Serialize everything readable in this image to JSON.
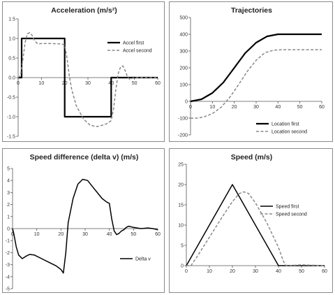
{
  "chart_data": [
    {
      "id": "accel",
      "type": "line",
      "title": "Acceleration (m/s²)",
      "xlim": [
        0,
        60
      ],
      "ylim": [
        -1.5,
        1.5
      ],
      "xticks": [
        0,
        10,
        20,
        30,
        40,
        50,
        60
      ],
      "yticks": [
        -1.5,
        -1.0,
        -0.5,
        0.0,
        0.5,
        1.0,
        1.5
      ],
      "ytick_labels": [
        "-1.5",
        "-1.0",
        "-0.5",
        "0.0",
        "0.5",
        "1.0",
        "1.5"
      ],
      "xaxis_at_zero": true,
      "legend": "right",
      "series": [
        {
          "name": "Accel first",
          "color": "#000000",
          "dash": "",
          "width": 2.2,
          "x": [
            0,
            1.5,
            1.5,
            20,
            20,
            40,
            40,
            43,
            60
          ],
          "y": [
            0,
            0,
            1,
            1,
            -1,
            -1,
            0,
            0,
            0
          ]
        },
        {
          "name": "Accel second",
          "color": "#888888",
          "dash": "4,2.5",
          "width": 1.5,
          "x": [
            0,
            1,
            2,
            3,
            4,
            5,
            6,
            7,
            8,
            9,
            10,
            14,
            18,
            20,
            21,
            22,
            23,
            25,
            28,
            31,
            34,
            36,
            38,
            40,
            41,
            42,
            43,
            44,
            45,
            46,
            47,
            48,
            49,
            50,
            52,
            55,
            60
          ],
          "y": [
            0,
            0.05,
            0.45,
            0.9,
            1.12,
            1.15,
            1.08,
            0.95,
            0.88,
            0.86,
            0.87,
            0.87,
            0.86,
            0.84,
            0.5,
            0.05,
            -0.3,
            -0.72,
            -1.05,
            -1.22,
            -1.25,
            -1.22,
            -1.18,
            -1.1,
            -0.8,
            -0.3,
            0.1,
            0.27,
            0.3,
            0.18,
            0.02,
            -0.05,
            -0.02,
            0,
            0,
            0,
            0
          ]
        }
      ]
    },
    {
      "id": "traj",
      "type": "line",
      "title": "Trajectories",
      "xlim": [
        0,
        60
      ],
      "ylim": [
        -200,
        500
      ],
      "xticks": [
        0,
        10,
        20,
        30,
        40,
        50,
        60
      ],
      "yticks": [
        -200,
        -100,
        0,
        100,
        200,
        300,
        400,
        500
      ],
      "ytick_labels": [
        "-200",
        "-100",
        "0",
        "100",
        "200",
        "300",
        "400",
        "500"
      ],
      "xaxis_at_zero": true,
      "legend": "bottom-right",
      "series": [
        {
          "name": "Location first",
          "color": "#000000",
          "dash": "",
          "width": 2.2,
          "x": [
            0,
            5,
            10,
            15,
            20,
            25,
            30,
            35,
            40,
            45,
            50,
            55,
            60
          ],
          "y": [
            0,
            12.5,
            50,
            112.5,
            200,
            287.5,
            350,
            387.5,
            400,
            400,
            400,
            400,
            400
          ]
        },
        {
          "name": "Location second",
          "color": "#888888",
          "dash": "4,2.5",
          "width": 1.5,
          "x": [
            0,
            3,
            6,
            10,
            14,
            18,
            22,
            26,
            30,
            34,
            38,
            42,
            44,
            50,
            55,
            60
          ],
          "y": [
            -100,
            -100,
            -93,
            -73,
            -35,
            25,
            100,
            180,
            245,
            290,
            305,
            308,
            308,
            308,
            308,
            308
          ]
        }
      ]
    },
    {
      "id": "dv",
      "type": "line",
      "title": "Speed difference (delta v) (m/s)",
      "xlim": [
        0,
        60
      ],
      "ylim": [
        -5,
        5
      ],
      "xticks": [
        0,
        10,
        20,
        30,
        40,
        50,
        60
      ],
      "yticks": [
        -5,
        -4,
        -3,
        -2,
        -1,
        0,
        1,
        2,
        3,
        4,
        5
      ],
      "ytick_labels": [
        "-5",
        "-4",
        "-3",
        "-2",
        "-1",
        "0",
        "1",
        "2",
        "3",
        "4",
        "5"
      ],
      "xaxis_at_zero": true,
      "legend": "bottom-right",
      "series": [
        {
          "name": "Delta v",
          "color": "#000000",
          "dash": "",
          "width": 1.5,
          "x": [
            0,
            0.5,
            1.5,
            2.5,
            4,
            5.5,
            7,
            9,
            12,
            15,
            18,
            20,
            21,
            22,
            23,
            25,
            27,
            29,
            31,
            33,
            35,
            37,
            39,
            40,
            41,
            42,
            43,
            44,
            45,
            46,
            47,
            48,
            50,
            53,
            56,
            58,
            60
          ],
          "y": [
            0,
            -0.4,
            -1.5,
            -2.2,
            -2.5,
            -2.3,
            -2.15,
            -2.2,
            -2.5,
            -2.8,
            -3.1,
            -3.4,
            -3.7,
            -2.0,
            0.5,
            2.5,
            3.7,
            4.1,
            4.0,
            3.5,
            3.0,
            2.5,
            2.2,
            2.1,
            0.8,
            -0.2,
            -0.5,
            -0.4,
            -0.2,
            -0.1,
            0.1,
            0.2,
            0.1,
            0.0,
            0.05,
            0.0,
            -0.1
          ]
        }
      ]
    },
    {
      "id": "speed",
      "type": "line",
      "title": "Speed (m/s)",
      "xlim": [
        0,
        60
      ],
      "ylim": [
        0,
        25
      ],
      "xticks": [
        0,
        10,
        20,
        30,
        40,
        50,
        60
      ],
      "yticks": [
        0,
        5,
        10,
        15,
        20,
        25
      ],
      "ytick_labels": [
        "0",
        "5",
        "10",
        "15",
        "20",
        "25"
      ],
      "xaxis_at_zero": true,
      "legend": "right",
      "series": [
        {
          "name": "Speed first",
          "color": "#000000",
          "dash": "",
          "width": 1.5,
          "x": [
            0,
            20,
            40,
            60
          ],
          "y": [
            0,
            20,
            0,
            0
          ]
        },
        {
          "name": "Speed second",
          "color": "#888888",
          "dash": "4,2.5",
          "width": 1.5,
          "x": [
            0,
            2,
            5,
            10,
            15,
            20,
            23,
            25,
            27,
            30,
            35,
            40,
            42,
            43,
            44,
            45,
            47,
            50,
            55,
            60
          ],
          "y": [
            0,
            0,
            2.5,
            7,
            11.5,
            15.8,
            17.8,
            18.2,
            17.8,
            15.5,
            10.5,
            4.5,
            1.3,
            0.2,
            -0.2,
            -0.1,
            0.1,
            0.2,
            0.1,
            0
          ]
        }
      ]
    }
  ]
}
